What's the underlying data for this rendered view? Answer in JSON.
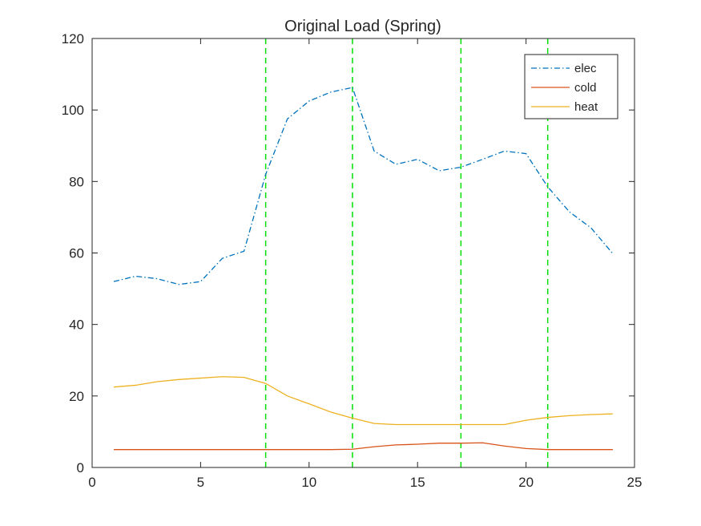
{
  "chart_data": {
    "type": "line",
    "title": "Original Load (Spring)",
    "xlabel": "",
    "ylabel": "",
    "xlim": [
      0,
      25
    ],
    "ylim": [
      0,
      120
    ],
    "xticks": [
      0,
      5,
      10,
      15,
      20,
      25
    ],
    "yticks": [
      0,
      20,
      40,
      60,
      80,
      100,
      120
    ],
    "grid": false,
    "legend_position": "top-right",
    "x": [
      1,
      2,
      3,
      4,
      5,
      6,
      7,
      8,
      9,
      10,
      11,
      12,
      13,
      14,
      15,
      16,
      17,
      18,
      19,
      20,
      21,
      22,
      23,
      24
    ],
    "series": [
      {
        "name": "elec",
        "color": "#0072BD",
        "style": "dash-dot",
        "values": [
          52,
          53.5,
          52.8,
          51.2,
          52,
          58.5,
          60.5,
          82,
          97.5,
          102.5,
          105,
          106.3,
          88.5,
          84.8,
          86.2,
          83,
          84,
          86.2,
          88.5,
          87.8,
          78.5,
          71.5,
          67,
          59.8
        ]
      },
      {
        "name": "cold",
        "color": "#D95319",
        "style": "solid",
        "values": [
          5,
          5,
          5,
          5,
          5,
          5,
          5,
          5,
          5,
          5,
          5,
          5.1,
          5.8,
          6.3,
          6.5,
          6.8,
          6.8,
          6.9,
          6,
          5.3,
          5,
          5,
          5,
          5
        ]
      },
      {
        "name": "heat",
        "color": "#EDB120",
        "style": "solid",
        "values": [
          22.5,
          23,
          24,
          24.6,
          25,
          25.4,
          25.2,
          23.5,
          20,
          17.8,
          15.5,
          13.8,
          12.3,
          12,
          12,
          12,
          12,
          12,
          12,
          13.2,
          14,
          14.5,
          14.8,
          15
        ]
      }
    ],
    "vertical_lines": {
      "color": "#00E000",
      "style": "dashed",
      "x": [
        8,
        12,
        17,
        21
      ]
    }
  }
}
